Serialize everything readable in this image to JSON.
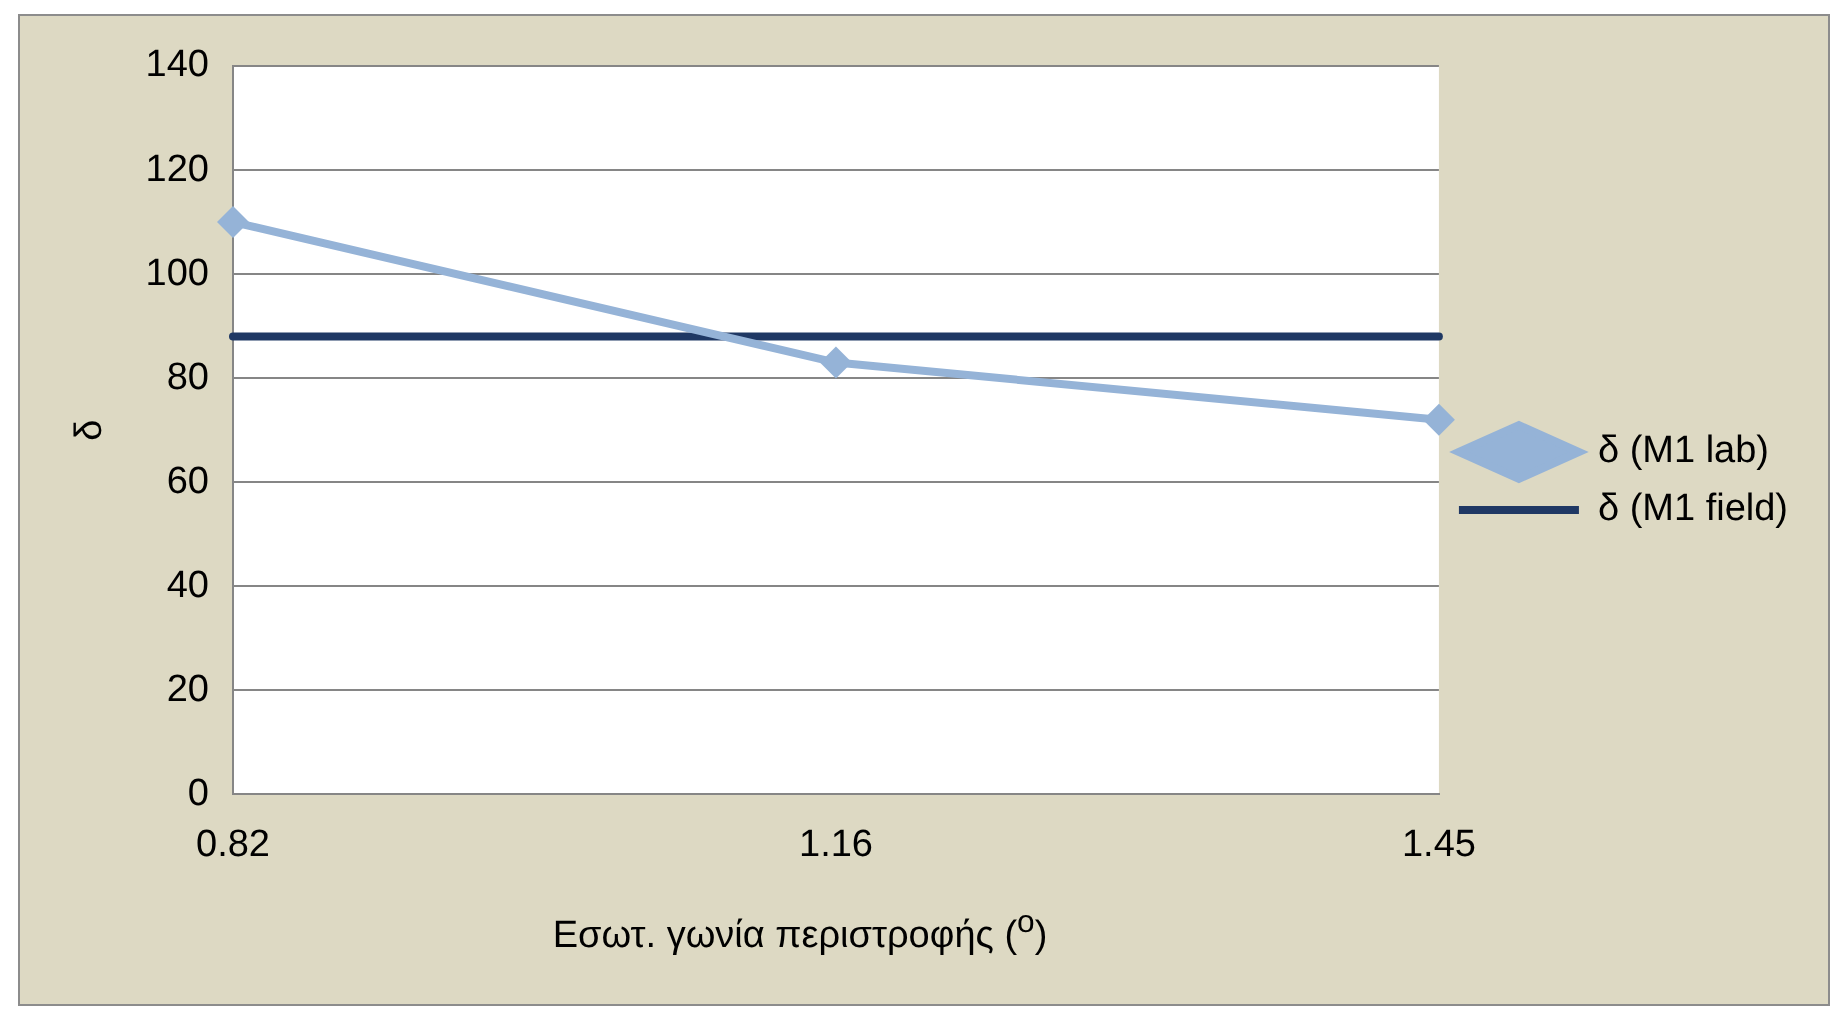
{
  "chart_data": {
    "type": "line",
    "xlabel": "Εσωτ. γωνία περιστροφής ($^{o}$)",
    "ylabel": "δ",
    "categories": [
      "0.82",
      "1.16",
      "1.45"
    ],
    "series": [
      {
        "name": "δ (M1 lab)",
        "color": "#95b3d7",
        "values": [
          110,
          83,
          72
        ],
        "marker": "diamond"
      },
      {
        "name": "δ (M1 field)",
        "color": "#1f3864",
        "values": [
          88,
          88,
          88
        ],
        "marker": "none"
      }
    ],
    "ylim": [
      0,
      140
    ],
    "yticks": [
      0,
      20,
      40,
      60,
      80,
      100,
      120,
      140
    ],
    "grid": "y",
    "legend": "right",
    "line_style": "solid"
  }
}
